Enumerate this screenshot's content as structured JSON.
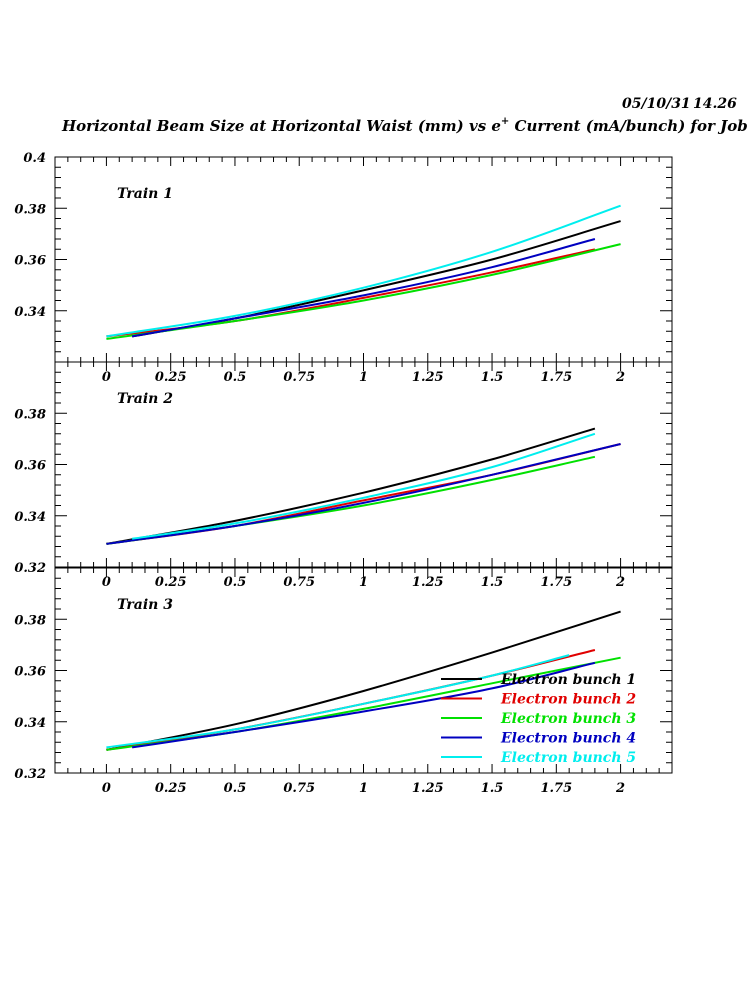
{
  "header": {
    "date": "05/10/31",
    "time": "14.26",
    "title_pre": "Horizontal Beam Size at Horizontal Waist (mm) vs e",
    "title_sup": "+",
    "title_post": " Current (mA/bunch) for Job"
  },
  "colors": {
    "Electron bunch 1": "#000000",
    "Electron bunch 2": "#e00000",
    "Electron bunch 3": "#00e000",
    "Electron bunch 4": "#0000c0",
    "Electron bunch 5": "#00eeee"
  },
  "chart_data": [
    {
      "type": "line",
      "panel_label": "Train 1",
      "xlim": [
        -0.2,
        2.2
      ],
      "ylim": [
        0.32,
        0.4
      ],
      "x_ticks": [
        "0",
        "0.25",
        "0.5",
        "0.75",
        "1",
        "1.25",
        "1.5",
        "1.75",
        "2"
      ],
      "y_ticks": [
        "0.34",
        "0.36",
        "0.38",
        "0.4"
      ],
      "series": [
        {
          "name": "Electron bunch 1",
          "x": [
            0.1,
            0.5,
            1.0,
            1.5,
            2.0
          ],
          "y": [
            0.33,
            0.337,
            0.348,
            0.36,
            0.375
          ]
        },
        {
          "name": "Electron bunch 2",
          "x": [
            0.0,
            0.5,
            1.0,
            1.5,
            1.9
          ],
          "y": [
            0.33,
            0.336,
            0.345,
            0.355,
            0.364
          ]
        },
        {
          "name": "Electron bunch 3",
          "x": [
            0.0,
            0.5,
            1.0,
            1.5,
            2.0
          ],
          "y": [
            0.329,
            0.336,
            0.344,
            0.354,
            0.366
          ]
        },
        {
          "name": "Electron bunch 4",
          "x": [
            0.1,
            0.5,
            1.0,
            1.5,
            1.9
          ],
          "y": [
            0.33,
            0.337,
            0.346,
            0.357,
            0.368
          ]
        },
        {
          "name": "Electron bunch 5",
          "x": [
            0.0,
            0.5,
            1.0,
            1.5,
            2.0
          ],
          "y": [
            0.33,
            0.338,
            0.349,
            0.363,
            0.381
          ]
        }
      ]
    },
    {
      "type": "line",
      "panel_label": "Train 2",
      "xlim": [
        -0.2,
        2.2
      ],
      "ylim": [
        0.32,
        0.4
      ],
      "x_ticks": [
        "0",
        "0.25",
        "0.5",
        "0.75",
        "1",
        "1.25",
        "1.5",
        "1.75",
        "2"
      ],
      "y_ticks": [
        "0.32",
        "0.34",
        "0.36",
        "0.38"
      ],
      "series": [
        {
          "name": "Electron bunch 1",
          "x": [
            0.0,
            0.5,
            1.0,
            1.5,
            1.9
          ],
          "y": [
            0.329,
            0.338,
            0.349,
            0.362,
            0.374
          ]
        },
        {
          "name": "Electron bunch 2",
          "x": [
            0.0,
            0.5,
            1.0,
            1.5,
            2.0
          ],
          "y": [
            0.329,
            0.336,
            0.346,
            0.356,
            0.368
          ]
        },
        {
          "name": "Electron bunch 3",
          "x": [
            0.0,
            0.5,
            1.0,
            1.5,
            1.9
          ],
          "y": [
            0.329,
            0.336,
            0.344,
            0.354,
            0.363
          ]
        },
        {
          "name": "Electron bunch 4",
          "x": [
            0.0,
            0.5,
            1.0,
            1.5,
            2.0
          ],
          "y": [
            0.329,
            0.336,
            0.345,
            0.356,
            0.368
          ]
        },
        {
          "name": "Electron bunch 5",
          "x": [
            0.1,
            0.5,
            1.0,
            1.5,
            1.9
          ],
          "y": [
            0.331,
            0.337,
            0.347,
            0.359,
            0.372
          ]
        }
      ]
    },
    {
      "type": "line",
      "panel_label": "Train 3",
      "xlim": [
        -0.2,
        2.2
      ],
      "ylim": [
        0.32,
        0.4
      ],
      "x_ticks": [
        "0",
        "0.25",
        "0.5",
        "0.75",
        "1",
        "1.25",
        "1.5",
        "1.75",
        "2"
      ],
      "y_ticks": [
        "0.32",
        "0.34",
        "0.36",
        "0.38"
      ],
      "legend_position": "bottom-right",
      "series": [
        {
          "name": "Electron bunch 1",
          "x": [
            0.0,
            0.5,
            1.0,
            1.5,
            2.0
          ],
          "y": [
            0.329,
            0.339,
            0.352,
            0.367,
            0.383
          ]
        },
        {
          "name": "Electron bunch 2",
          "x": [
            0.0,
            0.5,
            1.0,
            1.5,
            1.9
          ],
          "y": [
            0.329,
            0.337,
            0.347,
            0.358,
            0.368
          ]
        },
        {
          "name": "Electron bunch 3",
          "x": [
            0.0,
            0.5,
            1.0,
            1.5,
            2.0
          ],
          "y": [
            0.329,
            0.336,
            0.345,
            0.355,
            0.365
          ]
        },
        {
          "name": "Electron bunch 4",
          "x": [
            0.1,
            0.5,
            1.0,
            1.5,
            1.9
          ],
          "y": [
            0.33,
            0.336,
            0.344,
            0.353,
            0.363
          ]
        },
        {
          "name": "Electron bunch 5",
          "x": [
            0.0,
            0.5,
            1.0,
            1.5,
            1.8
          ],
          "y": [
            0.33,
            0.337,
            0.347,
            0.358,
            0.366
          ]
        }
      ]
    }
  ]
}
